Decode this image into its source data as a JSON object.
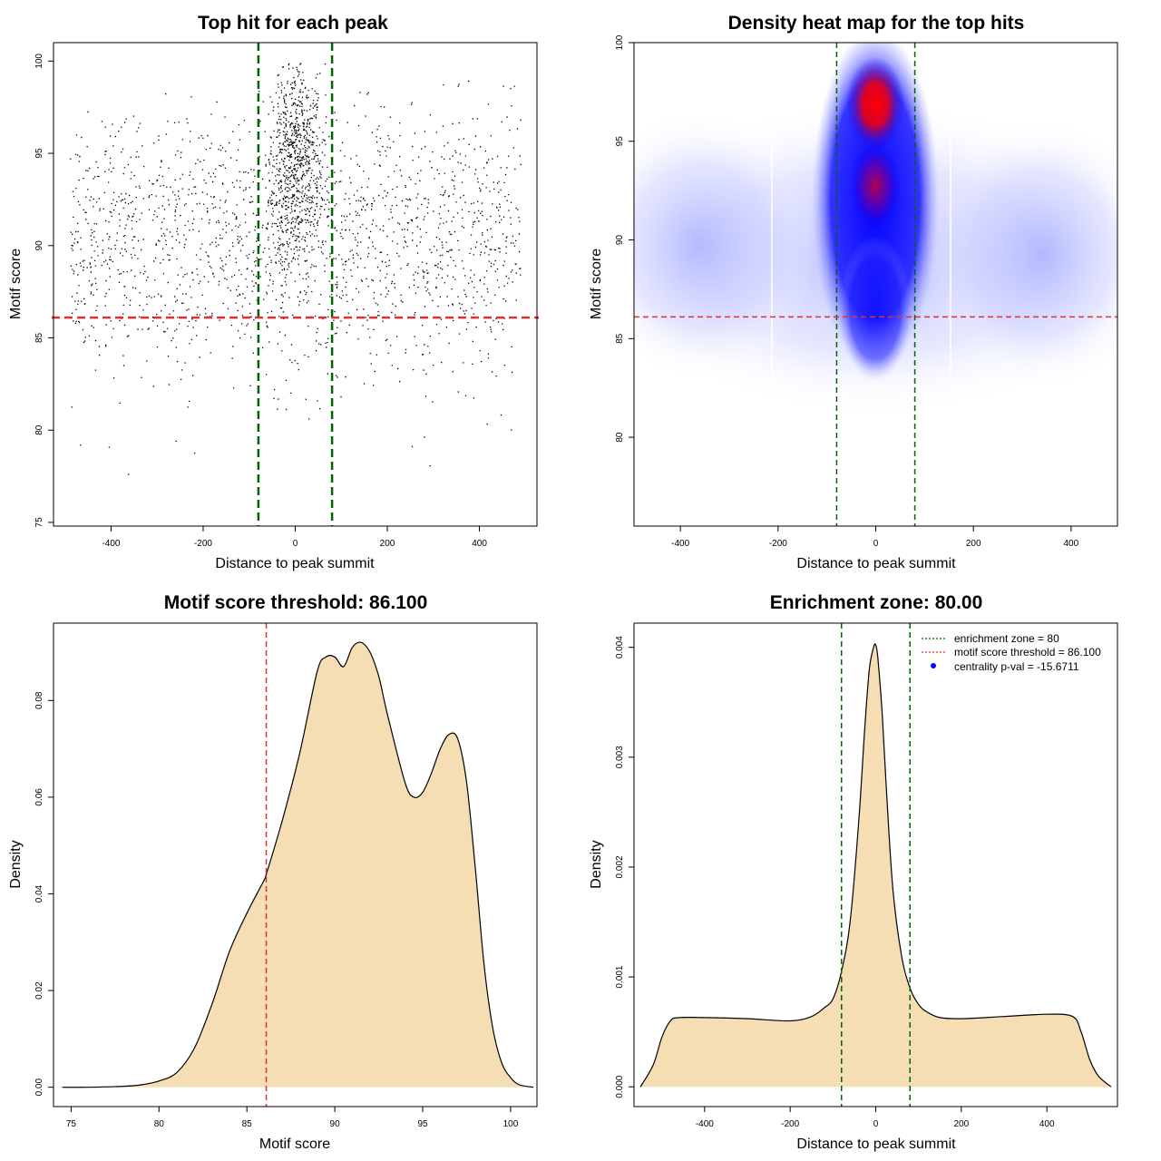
{
  "colors": {
    "scatter_points": "#000000",
    "threshold_line": "#e03030",
    "zone_line": "#006400",
    "density_fill": "#f5deb3",
    "heat_low": "#ffffff",
    "heat_mid": "#0000ff",
    "heat_high": "#ff0000",
    "legend_point": "#0000ff"
  },
  "chart_data": [
    {
      "id": "scatter",
      "type": "scatter",
      "title": "Top hit for each peak",
      "xlabel": "Distance to peak summit",
      "ylabel": "Motif score",
      "xlim": [
        -525,
        525
      ],
      "ylim": [
        74.8,
        101
      ],
      "xticks": [
        -400,
        -200,
        0,
        200,
        400
      ],
      "yticks": [
        75,
        80,
        85,
        90,
        95,
        100
      ],
      "point_count": 24000,
      "score_threshold": 86.1,
      "enrichment_zone": 80,
      "vlines": [
        -80,
        80
      ],
      "hline": 86.1
    },
    {
      "id": "heatmap",
      "type": "heatmap",
      "title": "Density heat map for the top hits",
      "xlabel": "Distance to peak summit",
      "ylabel": "Motif score",
      "xlim": [
        -495,
        495
      ],
      "ylim": [
        75.5,
        100
      ],
      "xticks": [
        -400,
        -200,
        0,
        200,
        400
      ],
      "yticks": [
        80,
        85,
        90,
        95,
        100
      ],
      "peaks": [
        {
          "x": 5,
          "y": 96.8,
          "intensity": "max"
        },
        {
          "x": 5,
          "y": 92.6,
          "intensity": "high"
        }
      ],
      "vlines": [
        -80,
        80
      ],
      "hline": 86.1
    },
    {
      "id": "score_density",
      "type": "area",
      "title": "Motif score threshold: 86.100",
      "xlabel": "Motif score",
      "ylabel": "Density",
      "xlim": [
        74,
        101.5
      ],
      "ylim": [
        -0.004,
        0.096
      ],
      "xticks": [
        75,
        80,
        85,
        90,
        95,
        100
      ],
      "yticks": [
        0.0,
        0.02,
        0.04,
        0.06,
        0.08
      ],
      "ytick_labels": [
        "0.00",
        "0.02",
        "0.04",
        "0.06",
        "0.08"
      ],
      "x": [
        74.5,
        76,
        78,
        79,
        80,
        81,
        82,
        83,
        84,
        85,
        86,
        86.1,
        87,
        88,
        89,
        89.5,
        90,
        90.5,
        91,
        91.5,
        92,
        92.5,
        93,
        94,
        94.5,
        95,
        95.5,
        96,
        96.5,
        97,
        97.5,
        98,
        98.5,
        99,
        99.5,
        100,
        100.5,
        101.3
      ],
      "y": [
        0.0,
        0.0,
        0.0002,
        0.0005,
        0.0013,
        0.003,
        0.008,
        0.017,
        0.028,
        0.036,
        0.043,
        0.044,
        0.055,
        0.069,
        0.086,
        0.089,
        0.089,
        0.087,
        0.091,
        0.092,
        0.09,
        0.085,
        0.077,
        0.063,
        0.06,
        0.061,
        0.065,
        0.07,
        0.073,
        0.072,
        0.063,
        0.045,
        0.025,
        0.012,
        0.005,
        0.002,
        0.0005,
        0.0
      ],
      "vline": 86.1
    },
    {
      "id": "distance_density",
      "type": "area",
      "title": "Enrichment zone: 80.00",
      "xlabel": "Distance to peak summit",
      "ylabel": "Density",
      "xlim": [
        -565,
        565
      ],
      "ylim": [
        -0.00018,
        0.00422
      ],
      "xticks": [
        -400,
        -200,
        0,
        200,
        400
      ],
      "yticks": [
        0.0,
        0.001,
        0.002,
        0.003,
        0.004
      ],
      "ytick_labels": [
        "0.000",
        "0.001",
        "0.002",
        "0.003",
        "0.004"
      ],
      "x": [
        -550,
        -520,
        -500,
        -480,
        -460,
        -400,
        -300,
        -200,
        -150,
        -120,
        -100,
        -80,
        -60,
        -40,
        -25,
        -15,
        -5,
        0,
        5,
        15,
        25,
        40,
        60,
        80,
        100,
        120,
        150,
        200,
        300,
        400,
        460,
        480,
        500,
        520,
        550
      ],
      "y": [
        0.0,
        0.0002,
        0.00045,
        0.0006,
        0.00063,
        0.00063,
        0.00062,
        0.0006,
        0.00064,
        0.00072,
        0.0008,
        0.00105,
        0.0015,
        0.0024,
        0.0033,
        0.0038,
        0.004,
        0.00402,
        0.0039,
        0.0034,
        0.0027,
        0.0018,
        0.0012,
        0.0009,
        0.00075,
        0.00068,
        0.00063,
        0.00062,
        0.00064,
        0.00066,
        0.00064,
        0.0005,
        0.00025,
        0.0001,
        0.0
      ],
      "vlines": [
        -80,
        80
      ],
      "legend": [
        {
          "label": "enrichment zone = 80",
          "style": "dotted",
          "color": "#006400"
        },
        {
          "label": "motif score threshold = 86.100",
          "style": "dotted",
          "color": "#e03030"
        },
        {
          "label": "centrality p-val = -15.6711",
          "style": "point",
          "color": "#0000ff"
        }
      ],
      "legend_position": "top-right"
    }
  ]
}
